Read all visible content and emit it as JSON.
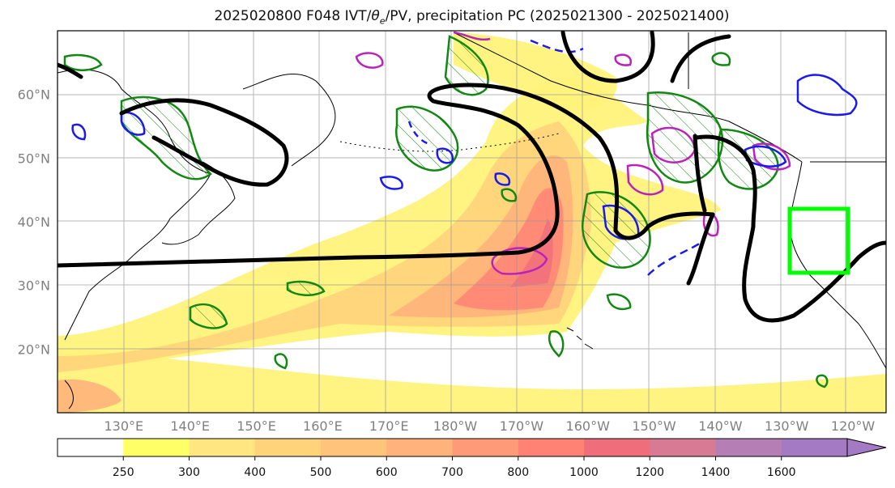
{
  "title": {
    "prefix": "2025020800 F048 IVT/",
    "theta": "θ",
    "sub": "e",
    "suffix": "/PV, precipitation PC (2025021300 - 2025021400)"
  },
  "map": {
    "projection": "PlateCarree",
    "lon_range": [
      120,
      245
    ],
    "lat_range": [
      10,
      70
    ],
    "lon_ticks": [
      {
        "lon": 130,
        "label": "130°E"
      },
      {
        "lon": 140,
        "label": "140°E"
      },
      {
        "lon": 150,
        "label": "150°E"
      },
      {
        "lon": 160,
        "label": "160°E"
      },
      {
        "lon": 170,
        "label": "170°E"
      },
      {
        "lon": 180,
        "label": "180°W"
      },
      {
        "lon": 190,
        "label": "170°W"
      },
      {
        "lon": 200,
        "label": "160°W"
      },
      {
        "lon": 210,
        "label": "150°W"
      },
      {
        "lon": 220,
        "label": "140°W"
      },
      {
        "lon": 230,
        "label": "130°W"
      },
      {
        "lon": 240,
        "label": "120°W"
      }
    ],
    "lat_ticks": [
      {
        "lat": 20,
        "label": "20°N"
      },
      {
        "lat": 30,
        "label": "30°N"
      },
      {
        "lat": 40,
        "label": "40°N"
      },
      {
        "lat": 50,
        "label": "50°N"
      },
      {
        "lat": 60,
        "label": "60°N"
      }
    ],
    "highlight_box": {
      "lon_min": 233,
      "lon_max": 242,
      "lat_min": 32,
      "lat_max": 42,
      "color": "#00ff00"
    },
    "colors": {
      "theta_e": "#000000",
      "pv_hatched": "#118811",
      "negative_anomaly": "#1a1aee",
      "positive_anomaly": "#bb22bb",
      "coast": "#000000",
      "grid": "#999999"
    }
  },
  "colorbar": {
    "levels": [
      "250",
      "300",
      "400",
      "500",
      "600",
      "700",
      "800",
      "1000",
      "1200",
      "1400",
      "1600"
    ],
    "colors": [
      "#ffff66",
      "#ffe680",
      "#ffd37a",
      "#ffc47a",
      "#ffb27a",
      "#ff9a78",
      "#ff8275",
      "#f06e7c",
      "#d87a94",
      "#b57fb5",
      "#a57ac4"
    ]
  }
}
